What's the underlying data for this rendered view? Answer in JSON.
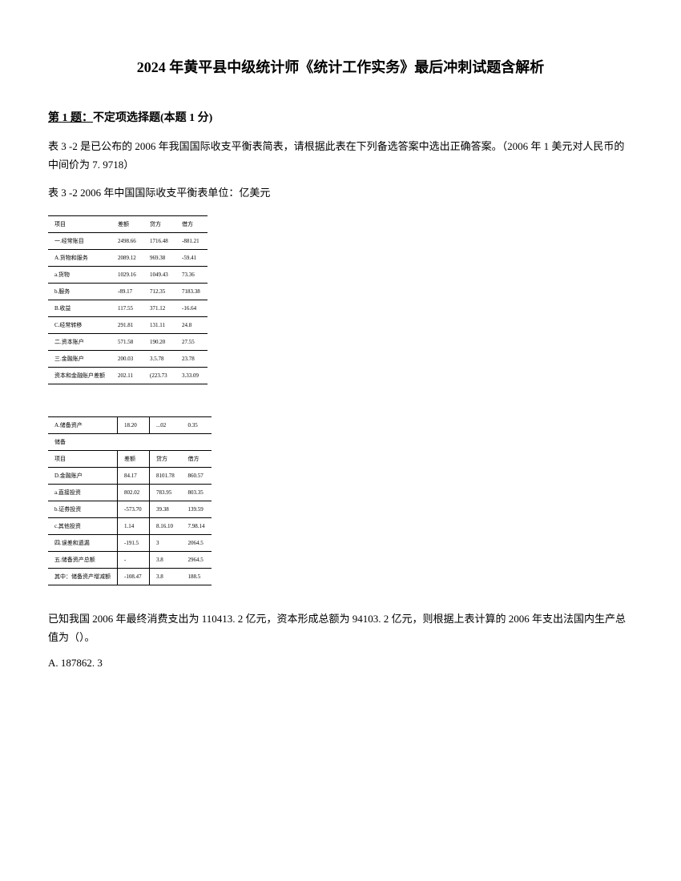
{
  "title": "2024 年黄平县中级统计师《统计工作实务》最后冲刺试题含解析",
  "question": {
    "number": "第 1 题：",
    "type": "不定项选择题(本题 1 分)",
    "intro": "表 3 -2 是已公布的 2006 年我国国际收支平衡表简表，请根据此表在下列备选答案中选出正确答案。（2006 年 1 美元对人民币的中间价为 7. 9718）",
    "tableTitle": "表 3 -2 2006 年中国国际收支平衡表单位：亿美元"
  },
  "table1": {
    "headers": [
      "项目",
      "差额",
      "贷方",
      "借方"
    ],
    "rows": [
      [
        "一.经常账目",
        "2498.66",
        "1716.48",
        "-881.21"
      ],
      [
        "A.货物和服务",
        "2089.12",
        "969.38",
        "-59.41"
      ],
      [
        "a.货物",
        "1029.16",
        "1049.43",
        "73.36"
      ],
      [
        "b.服务",
        "-89.17",
        "712.35",
        "7183.38"
      ],
      [
        "B.收益",
        "117.55",
        "371.12",
        "-16.64"
      ],
      [
        "C.经常转移",
        "291.81",
        "131.11",
        "24.8"
      ],
      [
        "二.资本账户",
        "571.58",
        "190.20",
        "27.55"
      ],
      [
        "三.金融账户",
        "200.03",
        "3.5.78",
        "23.78"
      ],
      [
        "资本和金融账户差额",
        "202.11",
        "(223.73",
        "3.33.09"
      ]
    ]
  },
  "table2": {
    "row1": [
      "A.储备资产",
      "18.20",
      "...02",
      "0.35"
    ],
    "row2_label": "储备",
    "headers": [
      "项目",
      "差额",
      "贷方",
      "借方"
    ],
    "rows": [
      [
        "D.金融账户",
        "84.17",
        "8101.78",
        "860.57"
      ],
      [
        "a.直接投资",
        "802.02",
        "783.95",
        "803.35"
      ],
      [
        "b.证券投资",
        "-573.70",
        "39.38",
        "139.59"
      ],
      [
        "c.其他投资",
        "1.14",
        "8.16.10",
        "7.98.14"
      ],
      [
        "四.误差和遗漏",
        "-191.5",
        "3",
        "2064.5"
      ],
      [
        "五.储备资产总额",
        "-",
        "3.8",
        "2964.5"
      ],
      [
        "其中：储备资产增减额",
        "-108.47",
        "3.8",
        "188.5"
      ]
    ]
  },
  "answerText": "已知我国 2006 年最终消费支出为 110413. 2 亿元，资本形成总额为 94103. 2 亿元，则根据上表计算的 2006 年支出法国内生产总值为（）。",
  "optionA": "A. 187862. 3"
}
